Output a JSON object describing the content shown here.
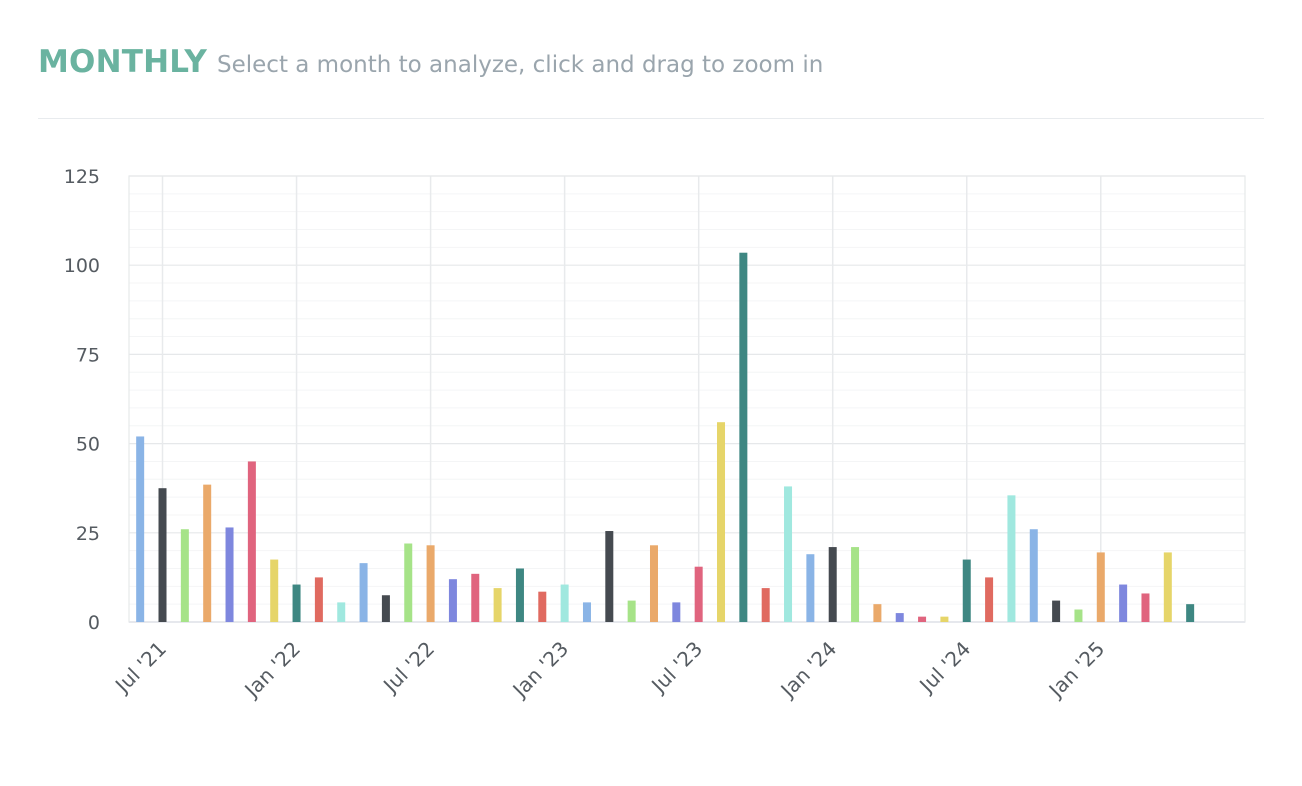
{
  "header": {
    "title": "MONTHLY",
    "subtitle": "Select a month to analyze, click and drag to zoom in"
  },
  "chart_data": {
    "type": "bar",
    "start_month": "2021-06",
    "x_tick_labels": [
      "Jul '21",
      "Jan '22",
      "Jul '22",
      "Jan '23",
      "Jul '23",
      "Jan '24",
      "Jul '24",
      "Jan '25"
    ],
    "x_tick_positions": [
      "2021-07",
      "2022-01",
      "2022-07",
      "2023-01",
      "2023-07",
      "2024-01",
      "2024-07",
      "2025-01"
    ],
    "y_ticks": [
      0,
      25,
      50,
      75,
      100,
      125
    ],
    "ylim": [
      0,
      125
    ],
    "values": [
      52,
      37.5,
      26,
      38.5,
      26.5,
      45,
      17.5,
      10.5,
      12.5,
      5.5,
      16.5,
      7.5,
      22,
      21.5,
      12,
      13.5,
      9.5,
      15,
      8.5,
      10.5,
      5.5,
      25.5,
      6,
      21.5,
      5.5,
      15.5,
      56,
      103.5,
      9.5,
      38,
      19,
      21,
      21,
      5,
      2.5,
      1.5,
      1.5,
      17.5,
      12.5,
      35.5,
      26,
      6,
      3.5,
      19.5,
      10.5,
      8,
      19.5,
      5
    ],
    "colors": [
      "#8ab4e6",
      "#454a50",
      "#a6e388",
      "#eaa96a",
      "#7e87de",
      "#e0647e",
      "#e6d569",
      "#3e8782",
      "#e06a60",
      "#a0e8df"
    ],
    "grid": true,
    "legend": "none"
  }
}
